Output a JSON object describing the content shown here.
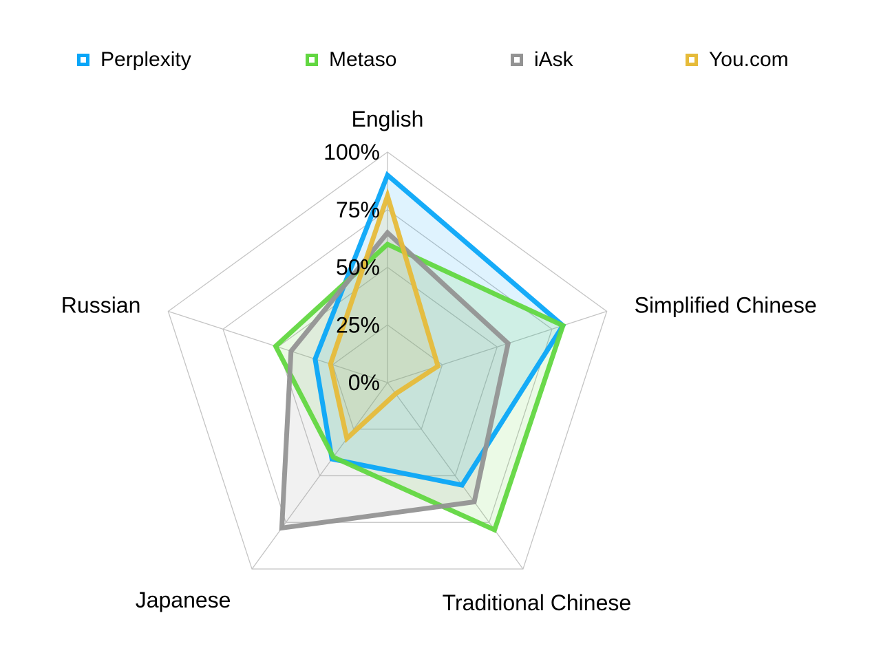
{
  "chart_data": {
    "type": "radar",
    "title": "",
    "axes": [
      "English",
      "Simplified Chinese",
      "Traditional Chinese",
      "Japanese",
      "Russian"
    ],
    "rlim": [
      0,
      100
    ],
    "rticks": [
      0,
      25,
      50,
      75,
      100
    ],
    "rtick_labels": [
      "0%",
      "25%",
      "50%",
      "75%",
      "100%"
    ],
    "grid": true,
    "legend_position": "top",
    "series": [
      {
        "name": "Perplexity",
        "values": [
          90,
          80,
          55,
          41,
          33
        ],
        "color": "#0AA6F8"
      },
      {
        "name": "Metaso",
        "values": [
          60,
          80,
          79,
          40,
          51
        ],
        "color": "#62D741"
      },
      {
        "name": "iAsk",
        "values": [
          65,
          55,
          64,
          78,
          44
        ],
        "color": "#939393"
      },
      {
        "name": "You.com",
        "values": [
          81,
          23,
          6,
          30,
          26
        ],
        "color": "#E6BB3A"
      }
    ]
  }
}
